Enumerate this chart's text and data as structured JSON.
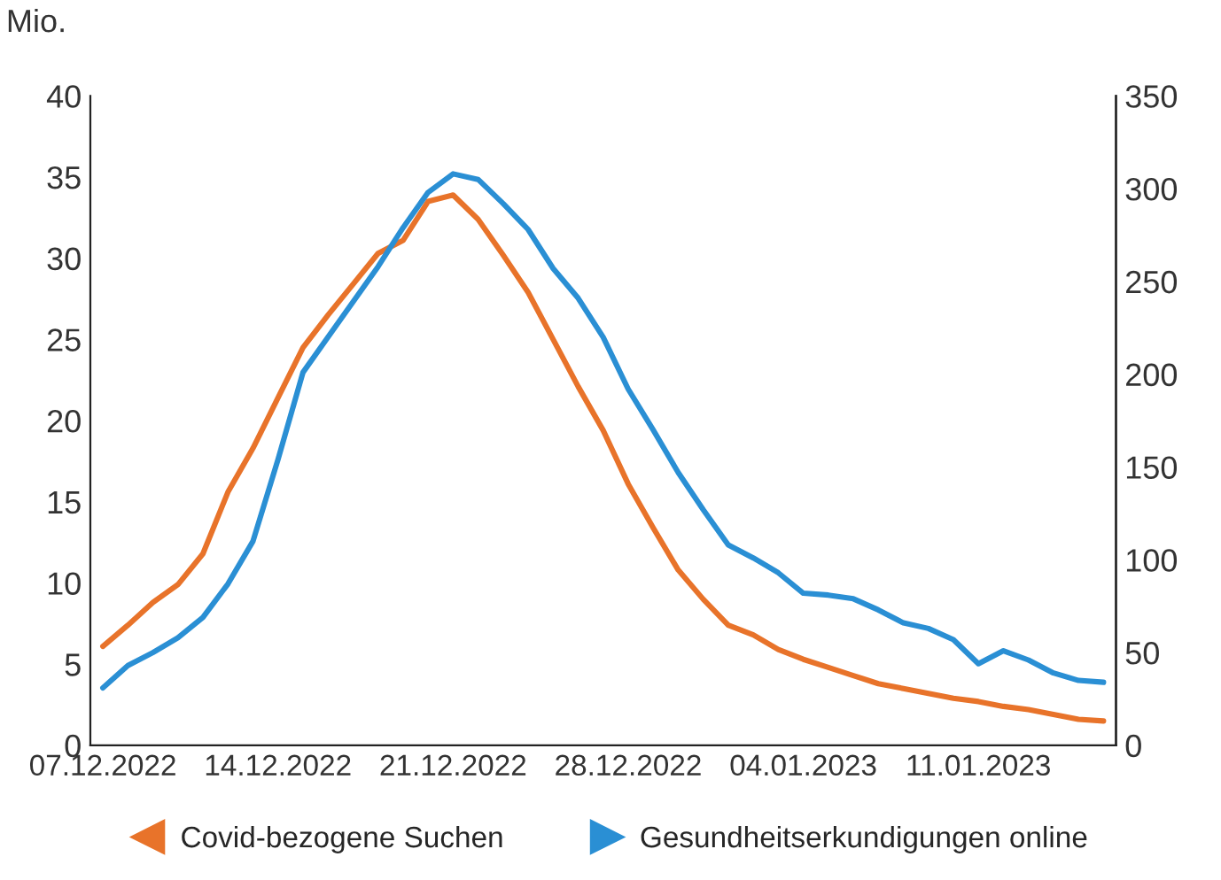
{
  "chart_data": {
    "type": "line",
    "ylabel": "Mio.",
    "x": [
      "2022-12-07",
      "2022-12-08",
      "2022-12-09",
      "2022-12-10",
      "2022-12-11",
      "2022-12-12",
      "2022-12-13",
      "2022-12-14",
      "2022-12-15",
      "2022-12-16",
      "2022-12-17",
      "2022-12-18",
      "2022-12-19",
      "2022-12-20",
      "2022-12-21",
      "2022-12-22",
      "2022-12-23",
      "2022-12-24",
      "2022-12-25",
      "2022-12-26",
      "2022-12-27",
      "2022-12-28",
      "2022-12-29",
      "2022-12-30",
      "2022-12-31",
      "2023-01-01",
      "2023-01-02",
      "2023-01-03",
      "2023-01-04",
      "2023-01-05",
      "2023-01-06",
      "2023-01-07",
      "2023-01-08",
      "2023-01-09",
      "2023-01-10",
      "2023-01-11",
      "2023-01-12",
      "2023-01-13",
      "2023-01-14",
      "2023-01-15",
      "2023-01-16"
    ],
    "series": [
      {
        "name": "Covid-bezogene Suchen",
        "color": "#e8732a",
        "axis": "y",
        "values": [
          6.1,
          7.4,
          8.8,
          9.9,
          11.8,
          15.6,
          18.3,
          21.4,
          24.5,
          26.5,
          28.4,
          30.3,
          31.1,
          33.5,
          33.9,
          32.4,
          30.2,
          27.9,
          25.0,
          22.1,
          19.4,
          16.1,
          13.4,
          10.8,
          9.0,
          7.4,
          6.8,
          5.9,
          5.3,
          4.8,
          4.3,
          3.8,
          3.5,
          3.2,
          2.9,
          2.7,
          2.4,
          2.2,
          1.9,
          1.6,
          1.5
        ]
      },
      {
        "name": "Gesundheitserkundigungen online",
        "color": "#2a8fd4",
        "axis": "y2",
        "values": [
          31,
          43,
          50,
          58,
          69,
          87,
          110,
          154,
          201,
          220,
          239,
          258,
          279,
          298,
          308,
          305,
          292,
          278,
          257,
          241,
          220,
          192,
          170,
          147,
          127,
          108,
          101,
          93,
          82,
          81,
          79,
          73,
          66,
          63,
          57,
          44,
          51,
          46,
          39,
          35,
          34
        ]
      }
    ],
    "xlim": [
      "2022-12-06T12:00",
      "2023-01-16T12:00"
    ],
    "xticks": [
      {
        "value": "2022-12-07",
        "label": "07.12.2022"
      },
      {
        "value": "2022-12-14",
        "label": "14.12.2022"
      },
      {
        "value": "2022-12-21",
        "label": "21.12.2022"
      },
      {
        "value": "2022-12-28",
        "label": "28.12.2022"
      },
      {
        "value": "2023-01-04",
        "label": "04.01.2023"
      },
      {
        "value": "2023-01-11",
        "label": "11.01.2023"
      }
    ],
    "ylim": [
      0,
      40
    ],
    "yticks": [
      0,
      5,
      10,
      15,
      20,
      25,
      30,
      35,
      40
    ],
    "y2lim": [
      0,
      350
    ],
    "y2ticks": [
      0,
      50,
      100,
      150,
      200,
      250,
      300,
      350
    ],
    "grid": false,
    "legend": "bottom",
    "line_style": "solid"
  }
}
